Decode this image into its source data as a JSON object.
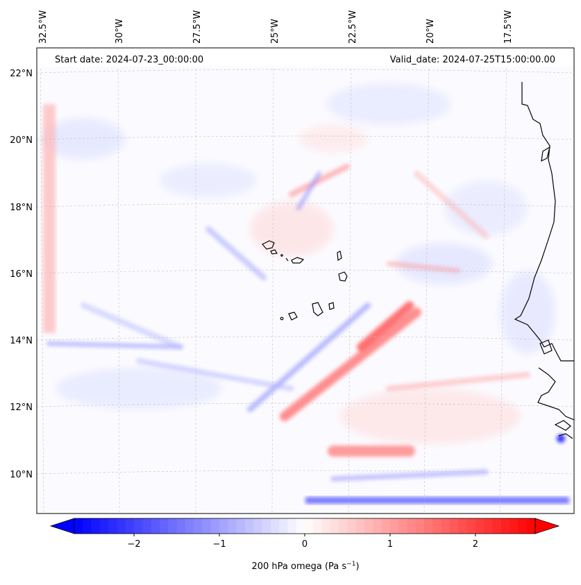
{
  "map": {
    "start_date": "Start date: 2024-07-23_00:00:00",
    "valid_date": "Valid_date: 2024-07-25T15:00:00.00",
    "lon_labels": [
      "32.5°W",
      "30°W",
      "27.5°W",
      "25°W",
      "22.5°W",
      "20°W",
      "17.5°W"
    ],
    "lat_labels": [
      "22°N",
      "20°N",
      "18°N",
      "16°N",
      "14°N",
      "12°N",
      "10°N"
    ],
    "colormap": "bwr",
    "color_negative": "#0000ff",
    "color_zero": "#ffffff",
    "color_positive": "#ff0000",
    "coastline_color": "#000000",
    "gridlines": true
  },
  "colorbar": {
    "ticks": [
      "−2",
      "−1",
      "0",
      "1",
      "2"
    ],
    "tick_values": [
      -2,
      -1,
      0,
      1,
      2
    ],
    "range": [
      -2.7,
      2.7
    ],
    "extend": "both",
    "label_main": "200 hPa omega (Pa s",
    "label_sup": "−1",
    "label_end": ")"
  }
}
